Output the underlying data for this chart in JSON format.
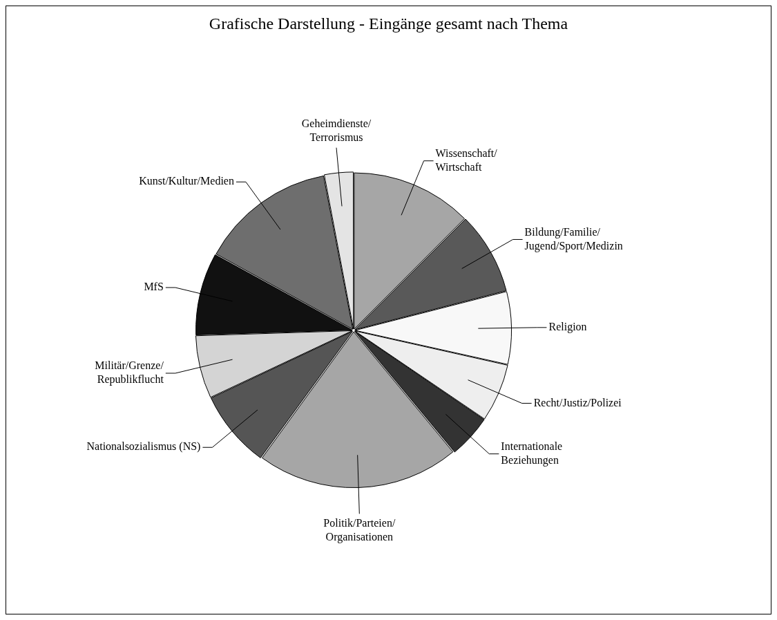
{
  "chart_data": {
    "type": "pie",
    "title": "Grafische Darstellung - Eingänge gesamt nach Thema",
    "categories": [
      "Wissenschaft/\nWirtschaft",
      "Bildung/Familie/\nJugend/Sport/Medizin",
      "Religion",
      "Recht/Justiz/Polizei",
      "Internationale\nBeziehungen",
      "Politik/Parteien/\nOrganisationen",
      "Nationalsozialismus (NS)",
      "Militär/Grenze/\nRepublikflucht",
      "MfS",
      "Kunst/Kultur/Medien",
      "Geheimdienste/\nTerrorismus"
    ],
    "values": [
      12.5,
      8.5,
      7.5,
      6,
      4.5,
      21,
      8,
      6.5,
      8.5,
      14,
      3
    ],
    "colors": [
      "#a6a6a6",
      "#595959",
      "#f8f8f8",
      "#eeeeee",
      "#333333",
      "#a6a6a6",
      "#555555",
      "#d4d4d4",
      "#111111",
      "#6e6e6e",
      "#e4e4e4"
    ],
    "legend": false
  }
}
